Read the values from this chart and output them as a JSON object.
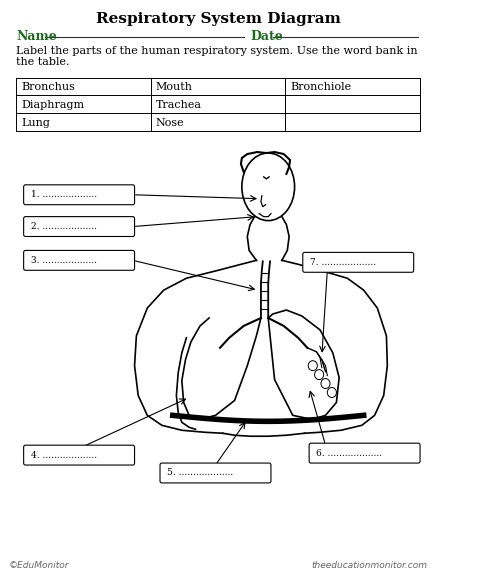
{
  "title": "Respiratory System Diagram",
  "name_label": "Name",
  "date_label": "Date",
  "instruction": "Label the parts of the human respiratory system. Use the word bank in\nthe table.",
  "word_bank": [
    [
      "Bronchus",
      "Mouth",
      "Bronchiole"
    ],
    [
      "Diaphragm",
      "Trachea",
      ""
    ],
    [
      "Lung",
      "Nose",
      ""
    ]
  ],
  "title_color": "#000000",
  "name_color": "#1a6b1a",
  "date_color": "#1a6b1a",
  "footer_left": "©EduMonitor",
  "footer_right": "theeducationmonitor.com",
  "bg_color": "#ffffff"
}
